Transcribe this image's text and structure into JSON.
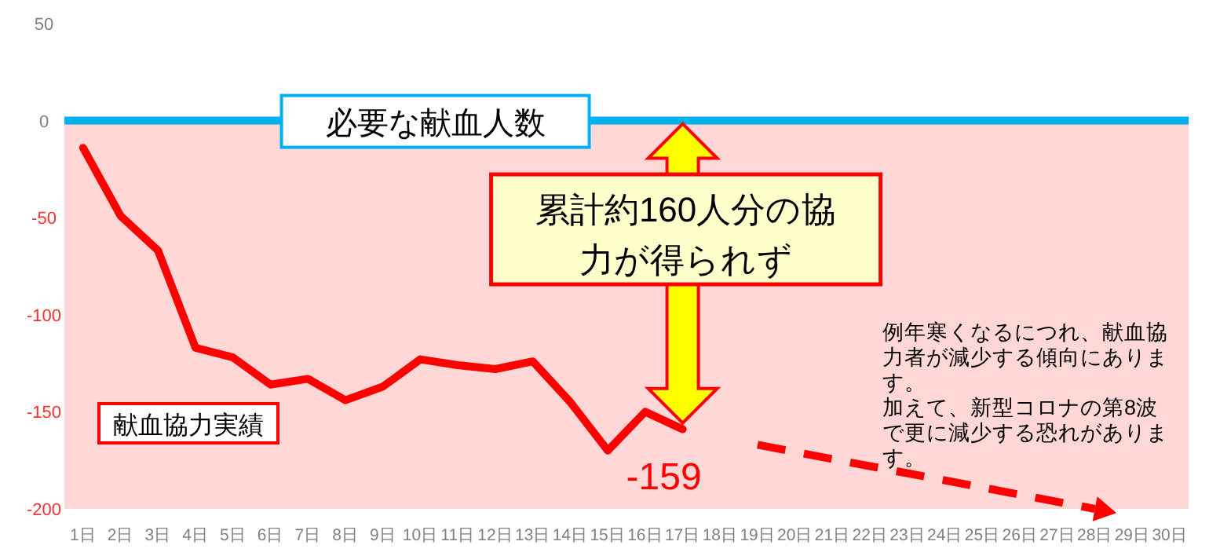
{
  "chart_data": {
    "type": "line",
    "categories": [
      "1日",
      "2日",
      "3日",
      "4日",
      "5日",
      "6日",
      "7日",
      "8日",
      "9日",
      "10日",
      "11日",
      "12日",
      "13日",
      "14日",
      "15日",
      "16日",
      "17日",
      "18日",
      "19日",
      "20日",
      "21日",
      "22日",
      "23日",
      "24日",
      "25日",
      "26日",
      "27日",
      "28日",
      "29日",
      "30日"
    ],
    "series": [
      {
        "name": "献血協力実績",
        "color": "#ff0000",
        "line_style": "solid",
        "values": [
          -14,
          -49,
          -67,
          -117,
          -122,
          -136,
          -133,
          -144,
          -137,
          -123,
          -126,
          -128,
          -124,
          -145,
          -170,
          -150,
          -159,
          null,
          null,
          null,
          null,
          null,
          null,
          null,
          null,
          null,
          null,
          null,
          null,
          null
        ],
        "value_labels": [
          null,
          null,
          null,
          null,
          null,
          null,
          null,
          null,
          null,
          null,
          null,
          null,
          null,
          null,
          null,
          null,
          "-159",
          null,
          null,
          null,
          null,
          null,
          null,
          null,
          null,
          null,
          null,
          null,
          null,
          null
        ]
      },
      {
        "color": "#ff0000",
        "line_style": "dashed",
        "values": [
          null,
          null,
          null,
          null,
          null,
          null,
          null,
          null,
          null,
          null,
          null,
          null,
          null,
          null,
          null,
          null,
          null,
          null,
          -167,
          null,
          null,
          null,
          null,
          null,
          null,
          null,
          null,
          -200,
          null,
          null
        ]
      }
    ],
    "ylim": [
      -200,
      50
    ],
    "yticks": [
      50,
      0,
      -50,
      -100,
      -150,
      -200
    ],
    "ref_lines": [
      {
        "axis": "y",
        "value": 0,
        "label": "必要な献血人数",
        "color": "#00b0f0"
      }
    ],
    "bands": [
      {
        "axis": "y",
        "from": -200,
        "to": 0,
        "color": "#ffd7d7"
      }
    ],
    "annotations": [
      "累計約160人分の協力が得られず",
      "例年寒くなるにつれ、献血協力者が減少する傾向にあります。",
      "加えて、新型コロナの第8波で更に減少する恐れがあります。"
    ],
    "grid": false
  }
}
